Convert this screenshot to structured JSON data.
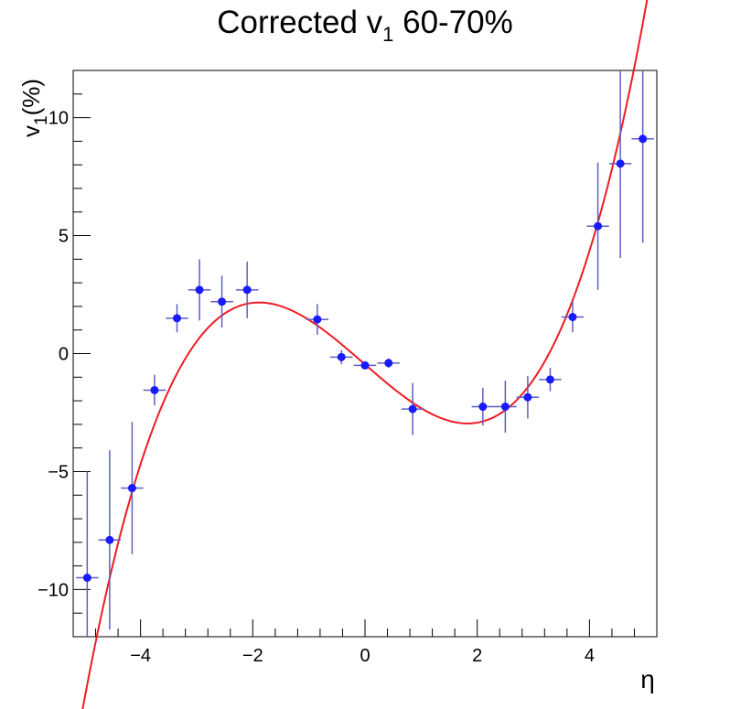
{
  "chart_data": {
    "type": "scatter",
    "title": {
      "prefix": "Corrected v",
      "subscript": "1",
      "suffix": " 60-70%"
    },
    "xlabel": "η",
    "ylabel": {
      "base": "v",
      "subscript": "1",
      "unit": "(%)"
    },
    "xlim": [
      -5.2,
      5.2
    ],
    "ylim": [
      -12,
      12
    ],
    "x_ticks": [
      -4,
      -2,
      0,
      2,
      4
    ],
    "x_tick_labels": [
      "−4",
      "−2",
      "0",
      "2",
      "4"
    ],
    "y_ticks": [
      -10,
      -5,
      0,
      5,
      10
    ],
    "y_tick_labels": [
      "−10",
      "−5",
      "0",
      "5",
      "10"
    ],
    "grid": false,
    "colors": {
      "points": "#1a1aff",
      "errors": "#5f5fc0",
      "fit": "#ee1c24"
    },
    "series": [
      {
        "points": [
          {
            "x": -4.95,
            "y": -9.5,
            "xerr": 0.2,
            "yerr": 4.5
          },
          {
            "x": -4.55,
            "y": -7.9,
            "xerr": 0.2,
            "yerr": 3.8
          },
          {
            "x": -4.15,
            "y": -5.7,
            "xerr": 0.2,
            "yerr": 2.8
          },
          {
            "x": -3.75,
            "y": -1.55,
            "xerr": 0.2,
            "yerr": 0.65
          },
          {
            "x": -3.35,
            "y": 1.5,
            "xerr": 0.2,
            "yerr": 0.6
          },
          {
            "x": -2.95,
            "y": 2.7,
            "xerr": 0.2,
            "yerr": 1.3
          },
          {
            "x": -2.55,
            "y": 2.2,
            "xerr": 0.2,
            "yerr": 1.1
          },
          {
            "x": -2.1,
            "y": 2.7,
            "xerr": 0.2,
            "yerr": 1.2
          },
          {
            "x": -0.85,
            "y": 1.45,
            "xerr": 0.2,
            "yerr": 0.65
          },
          {
            "x": -0.42,
            "y": -0.15,
            "xerr": 0.2,
            "yerr": 0.3
          },
          {
            "x": 0.0,
            "y": -0.5,
            "xerr": 0.2,
            "yerr": 0.15
          },
          {
            "x": 0.42,
            "y": -0.4,
            "xerr": 0.2,
            "yerr": 0.2
          },
          {
            "x": 0.85,
            "y": -2.35,
            "xerr": 0.2,
            "yerr": 1.1
          },
          {
            "x": 2.1,
            "y": -2.25,
            "xerr": 0.2,
            "yerr": 0.8
          },
          {
            "x": 2.5,
            "y": -2.25,
            "xerr": 0.2,
            "yerr": 1.1
          },
          {
            "x": 2.9,
            "y": -1.85,
            "xerr": 0.2,
            "yerr": 0.9
          },
          {
            "x": 3.3,
            "y": -1.1,
            "xerr": 0.2,
            "yerr": 0.5
          },
          {
            "x": 3.7,
            "y": 1.55,
            "xerr": 0.2,
            "yerr": 0.65
          },
          {
            "x": 4.15,
            "y": 5.4,
            "xerr": 0.2,
            "yerr": 2.7
          },
          {
            "x": 4.55,
            "y": 8.05,
            "xerr": 0.2,
            "yerr": 4.0
          },
          {
            "x": 4.95,
            "y": 9.1,
            "xerr": 0.2,
            "yerr": 4.4
          }
        ]
      }
    ],
    "fit": {
      "type": "polynomial",
      "coefficients": [
        -0.46,
        -2.07,
        0.018,
        0.2
      ],
      "x_range": [
        -5.1,
        5.1
      ]
    }
  }
}
